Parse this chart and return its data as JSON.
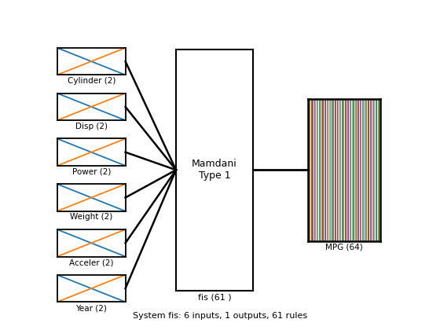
{
  "input_labels": [
    "Cylinder (2)",
    "Disp (2)",
    "Power (2)",
    "Weight (2)",
    "Acceler (2)",
    "Year (2)"
  ],
  "center_label": "Mamdani\nType 1",
  "center_sublabel": "fis (61 )",
  "output_label": "MPG (64)",
  "system_label": "System fis: 6 inputs, 1 outputs, 61 rules",
  "n_inputs": 6,
  "n_output_lines": 64,
  "bg_color": "#ffffff",
  "line_colors": [
    "#1f77b4",
    "#ff7f0e",
    "#2ca02c",
    "#d62728",
    "#9467bd",
    "#8c564b",
    "#e377c2",
    "#7f7f7f",
    "#bcbd22",
    "#17becf"
  ]
}
